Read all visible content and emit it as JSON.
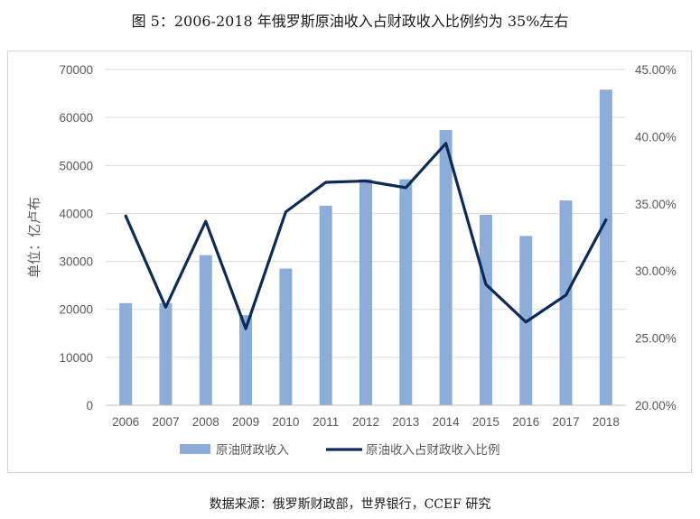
{
  "title": "图 5：2006-2018 年俄罗斯原油收入占财政收入比例约为 35%左右",
  "source": "数据来源：俄罗斯财政部，世界银行，CCEF 研究",
  "chart_data": {
    "type": "bar",
    "categories": [
      "2006",
      "2007",
      "2008",
      "2009",
      "2010",
      "2011",
      "2012",
      "2013",
      "2014",
      "2015",
      "2016",
      "2017",
      "2018"
    ],
    "series": [
      {
        "name": "原油财政收入",
        "type": "bar",
        "axis": "left",
        "color": "#8eacd8",
        "values": [
          21300,
          21300,
          31300,
          18800,
          28500,
          41600,
          47100,
          47100,
          57400,
          39700,
          35300,
          42700,
          65800
        ]
      },
      {
        "name": "原油收入占财政收入比例",
        "type": "line",
        "axis": "right",
        "color": "#0e2a57",
        "values": [
          34.1,
          27.3,
          33.7,
          25.7,
          34.4,
          36.6,
          36.7,
          36.2,
          39.5,
          29.0,
          26.2,
          28.2,
          33.8
        ]
      }
    ],
    "ylabel": "单位：亿卢布",
    "ylim": [
      0,
      70000
    ],
    "yticks": [
      "0",
      "10000",
      "20000",
      "30000",
      "40000",
      "50000",
      "60000",
      "70000"
    ],
    "y2lim": [
      20,
      45
    ],
    "y2ticks": [
      "20.00%",
      "25.00%",
      "30.00%",
      "35.00%",
      "40.00%",
      "45.00%"
    ],
    "grid": true,
    "legend_position": "bottom"
  }
}
